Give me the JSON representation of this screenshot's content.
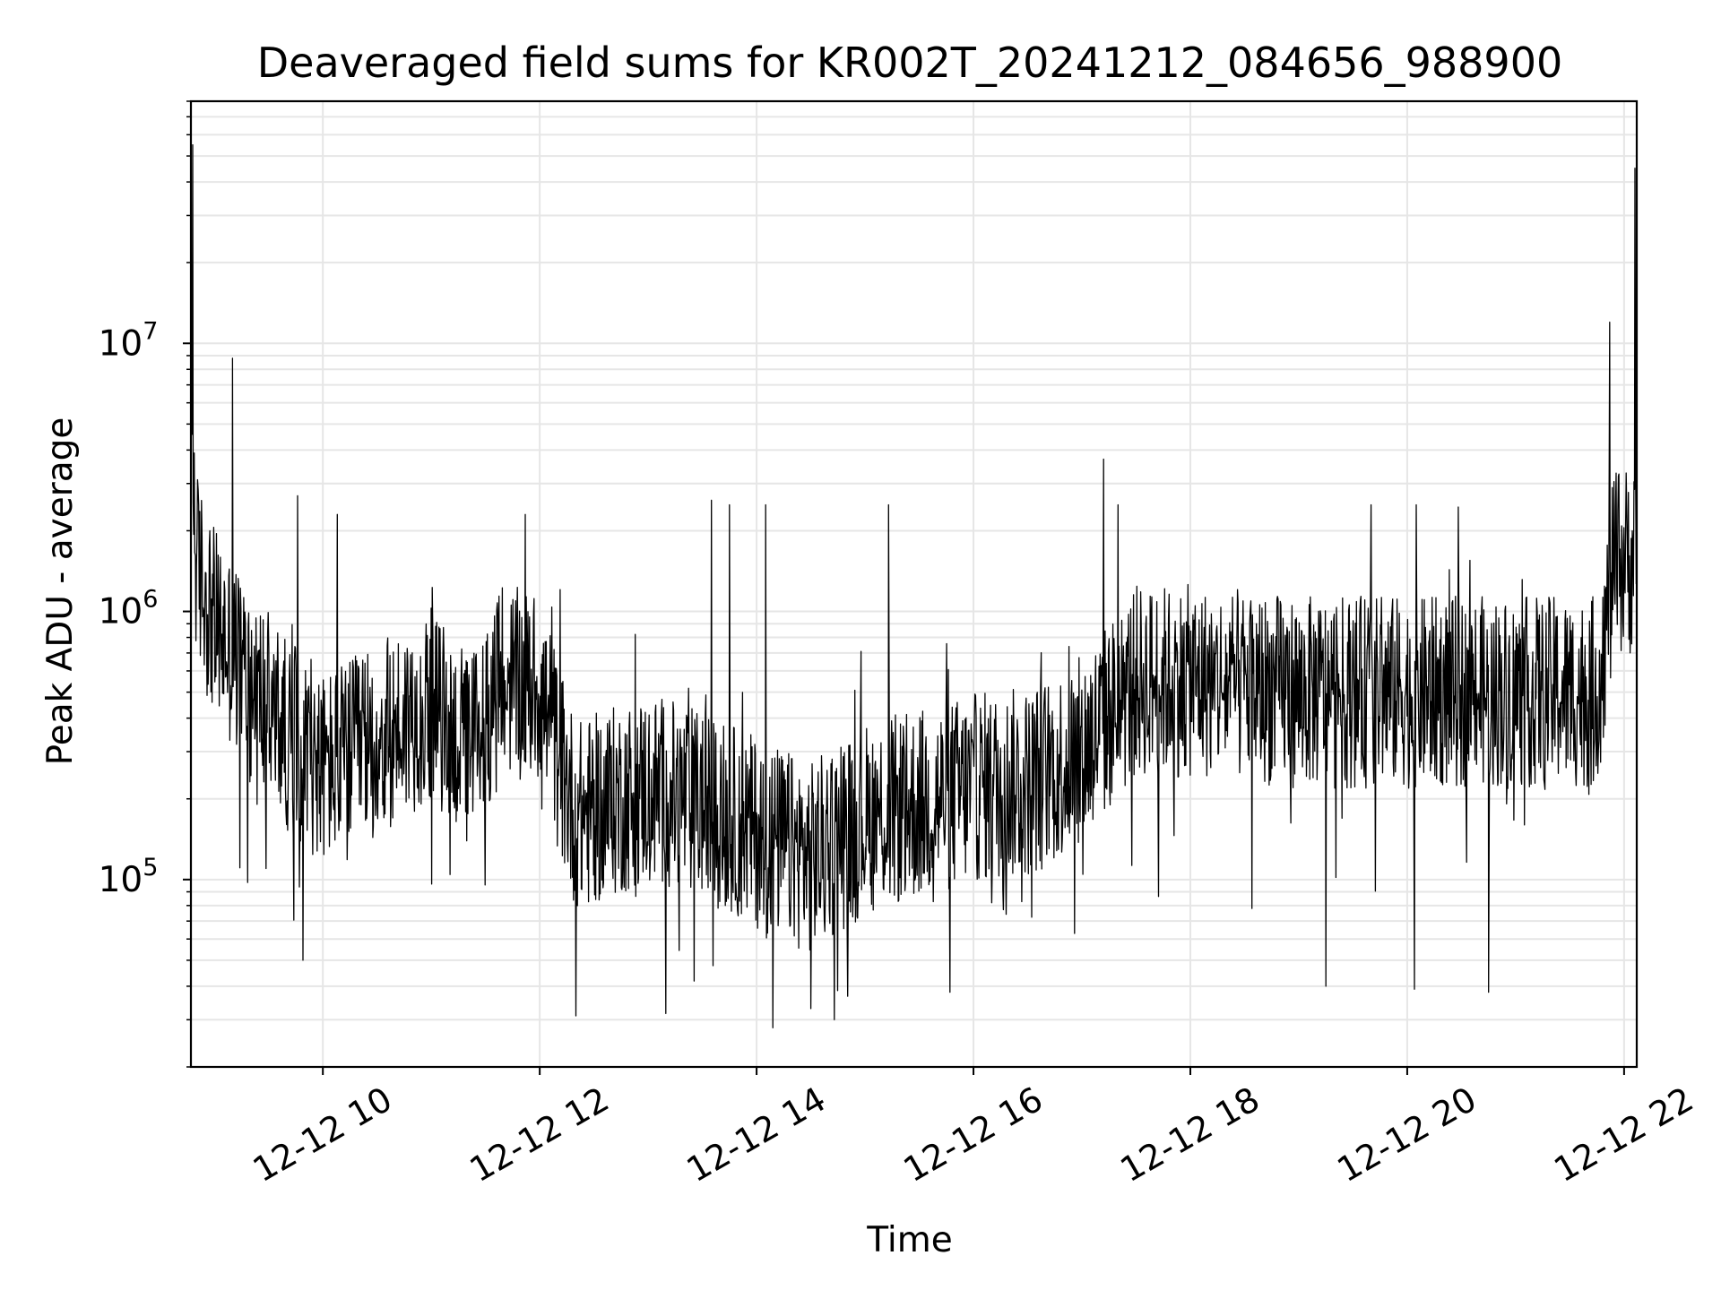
{
  "chart_data": {
    "type": "line",
    "title": "Deaveraged field sums for KR002T_20241212_084656_988900",
    "xlabel": "Time",
    "ylabel": "Peak ADU - average",
    "yscale": "log",
    "grid": true,
    "legend": "none",
    "line_color": "#000000",
    "grid_color": "#e6e6e6",
    "x_range": [
      "2024-12-12 08:47",
      "2024-12-12 22:07"
    ],
    "ylim": [
      20000,
      80000000
    ],
    "x_ticks": [
      {
        "value": "2024-12-12 10:00",
        "label": "12-12 10"
      },
      {
        "value": "2024-12-12 12:00",
        "label": "12-12 12"
      },
      {
        "value": "2024-12-12 14:00",
        "label": "12-12 14"
      },
      {
        "value": "2024-12-12 16:00",
        "label": "12-12 16"
      },
      {
        "value": "2024-12-12 18:00",
        "label": "12-12 18"
      },
      {
        "value": "2024-12-12 20:00",
        "label": "12-12 20"
      },
      {
        "value": "2024-12-12 22:00",
        "label": "12-12 22"
      }
    ],
    "y_ticks": [
      {
        "value": 100000,
        "base": "10",
        "exp": "5"
      },
      {
        "value": 1000000,
        "base": "10",
        "exp": "6"
      },
      {
        "value": 10000000,
        "base": "10",
        "exp": "7"
      }
    ],
    "series": [
      {
        "profile": [
          {
            "t": "2024-12-12 08:47",
            "y": 5000000
          },
          {
            "t": "2024-12-12 08:50",
            "y": 1500000
          },
          {
            "t": "2024-12-12 09:00",
            "y": 900000
          },
          {
            "t": "2024-12-12 09:20",
            "y": 550000
          },
          {
            "t": "2024-12-12 09:40",
            "y": 350000
          },
          {
            "t": "2024-12-12 10:00",
            "y": 260000
          },
          {
            "t": "2024-12-12 10:30",
            "y": 330000
          },
          {
            "t": "2024-12-12 11:00",
            "y": 450000
          },
          {
            "t": "2024-12-12 11:20",
            "y": 300000
          },
          {
            "t": "2024-12-12 11:40",
            "y": 550000
          },
          {
            "t": "2024-12-12 12:00",
            "y": 520000
          },
          {
            "t": "2024-12-12 12:20",
            "y": 170000
          },
          {
            "t": "2024-12-12 13:00",
            "y": 220000
          },
          {
            "t": "2024-12-12 13:30",
            "y": 190000
          },
          {
            "t": "2024-12-12 14:00",
            "y": 150000
          },
          {
            "t": "2024-12-12 14:30",
            "y": 120000
          },
          {
            "t": "2024-12-12 15:00",
            "y": 170000
          },
          {
            "t": "2024-12-12 15:30",
            "y": 190000
          },
          {
            "t": "2024-12-12 16:00",
            "y": 220000
          },
          {
            "t": "2024-12-12 16:30",
            "y": 230000
          },
          {
            "t": "2024-12-12 17:00",
            "y": 300000
          },
          {
            "t": "2024-12-12 17:30",
            "y": 550000
          },
          {
            "t": "2024-12-12 18:00",
            "y": 550000
          },
          {
            "t": "2024-12-12 19:00",
            "y": 500000
          },
          {
            "t": "2024-12-12 20:00",
            "y": 500000
          },
          {
            "t": "2024-12-12 21:00",
            "y": 500000
          },
          {
            "t": "2024-12-12 21:45",
            "y": 500000
          },
          {
            "t": "2024-12-12 21:55",
            "y": 1500000
          },
          {
            "t": "2024-12-12 22:07",
            "y": 1600000
          }
        ],
        "peaks": [
          {
            "t": "2024-12-12 08:48",
            "y": 55000000
          },
          {
            "t": "2024-12-12 09:10",
            "y": 8800000
          },
          {
            "t": "2024-12-12 09:46",
            "y": 2700000
          },
          {
            "t": "2024-12-12 10:08",
            "y": 2300000
          },
          {
            "t": "2024-12-12 11:52",
            "y": 2300000
          },
          {
            "t": "2024-12-12 13:35",
            "y": 2600000
          },
          {
            "t": "2024-12-12 13:45",
            "y": 2500000
          },
          {
            "t": "2024-12-12 14:05",
            "y": 2500000
          },
          {
            "t": "2024-12-12 15:13",
            "y": 2500000
          },
          {
            "t": "2024-12-12 17:12",
            "y": 3700000
          },
          {
            "t": "2024-12-12 17:20",
            "y": 2500000
          },
          {
            "t": "2024-12-12 19:40",
            "y": 2500000
          },
          {
            "t": "2024-12-12 20:05",
            "y": 2500000
          },
          {
            "t": "2024-12-12 21:52",
            "y": 12000000
          },
          {
            "t": "2024-12-12 22:06",
            "y": 45000000
          }
        ],
        "dips": [
          {
            "t": "2024-12-12 09:49",
            "y": 50000
          },
          {
            "t": "2024-12-12 12:20",
            "y": 31000
          },
          {
            "t": "2024-12-12 14:09",
            "y": 28000
          },
          {
            "t": "2024-12-12 14:30",
            "y": 33000
          },
          {
            "t": "2024-12-12 15:47",
            "y": 38000
          },
          {
            "t": "2024-12-12 19:15",
            "y": 40000
          },
          {
            "t": "2024-12-12 20:04",
            "y": 39000
          },
          {
            "t": "2024-12-12 20:45",
            "y": 38000
          }
        ]
      }
    ]
  }
}
